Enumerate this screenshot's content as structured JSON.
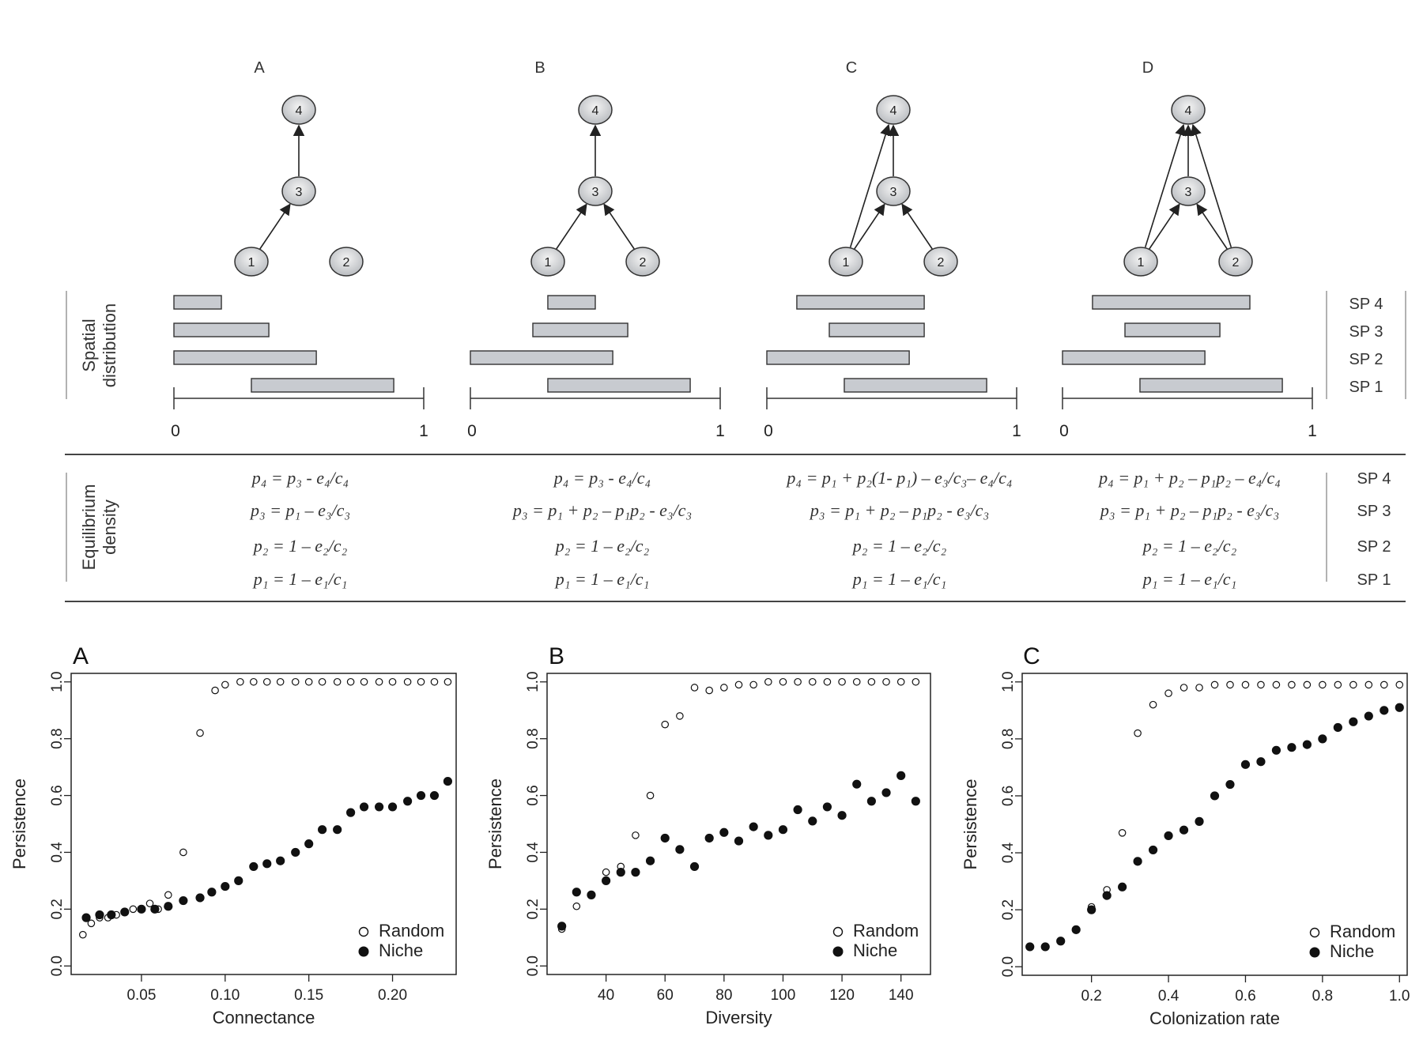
{
  "top": {
    "panel_labels": [
      "A",
      "B",
      "C",
      "D"
    ],
    "row_label_spatial": [
      "Spatial",
      "distribution"
    ],
    "row_label_equilibrium": [
      "Equilibrium",
      "density"
    ],
    "species_labels": [
      "SP 4",
      "SP 3",
      "SP 2",
      "SP 1"
    ],
    "axis_min": "0",
    "axis_max": "1",
    "nodes": [
      "1",
      "2",
      "3",
      "4"
    ],
    "webs": [
      {
        "edges": [
          [
            1,
            3
          ],
          [
            3,
            4
          ]
        ]
      },
      {
        "edges": [
          [
            1,
            3
          ],
          [
            2,
            3
          ],
          [
            3,
            4
          ]
        ]
      },
      {
        "edges": [
          [
            1,
            3
          ],
          [
            2,
            3
          ],
          [
            3,
            4
          ],
          [
            1,
            4
          ]
        ]
      },
      {
        "edges": [
          [
            1,
            3
          ],
          [
            2,
            3
          ],
          [
            3,
            4
          ],
          [
            1,
            4
          ],
          [
            2,
            4
          ]
        ]
      }
    ],
    "ranges": [
      [
        [
          0.0,
          0.19
        ],
        [
          0.0,
          0.38
        ],
        [
          0.0,
          0.57
        ],
        [
          0.31,
          0.88
        ]
      ],
      [
        [
          0.31,
          0.5
        ],
        [
          0.25,
          0.63
        ],
        [
          0.0,
          0.57
        ],
        [
          0.31,
          0.88
        ]
      ],
      [
        [
          0.12,
          0.63
        ],
        [
          0.25,
          0.63
        ],
        [
          0.0,
          0.57
        ],
        [
          0.31,
          0.88
        ]
      ],
      [
        [
          0.12,
          0.75
        ],
        [
          0.25,
          0.63
        ],
        [
          0.0,
          0.57
        ],
        [
          0.31,
          0.88
        ]
      ]
    ],
    "equations": [
      [
        "p₄ = p₃ - e₄/c₄",
        "p₃ = p₁ – e₃/c₃",
        "p₂ = 1 – e₂/c₂",
        "p₁ = 1 – e₁/c₁"
      ],
      [
        "p₄ = p₃ - e₄/c₄",
        "p₃ = p₁ + p₂ – p₁p₂ - e₃/c₃",
        "p₂ = 1 – e₂/c₂",
        "p₁ = 1 – e₁/c₁"
      ],
      [
        "p₄ = p₁ + p₂(1- p₁) – e₃/c₃– e₄/c₄",
        "p₃ = p₁ + p₂ – p₁p₂ - e₃/c₃",
        "p₂ = 1 – e₂/c₂",
        "p₁ = 1 – e₁/c₁"
      ],
      [
        "p₄ = p₁ + p₂ – p₁p₂ – e₄/c₄",
        "p₃ = p₁ + p₂ – p₁p₂ - e₃/c₃",
        "p₂ = 1 – e₂/c₂",
        "p₁ = 1 – e₁/c₁"
      ]
    ]
  },
  "chart_data": [
    {
      "type": "scatter",
      "panel": "A",
      "xlabel": "Connectance",
      "ylabel": "Persistence",
      "xlim": [
        0.008,
        0.238
      ],
      "ylim": [
        -0.03,
        1.03
      ],
      "xticks": [
        "0.05",
        "0.10",
        "0.15",
        "0.20"
      ],
      "xtick_values": [
        0.05,
        0.1,
        0.15,
        0.2
      ],
      "yticks": [
        "0.0",
        "0.2",
        "0.4",
        "0.6",
        "0.8",
        "1.0"
      ],
      "ytick_values": [
        0.0,
        0.2,
        0.4,
        0.6,
        0.8,
        1.0
      ],
      "legend": [
        "Random",
        "Niche"
      ],
      "legend_position": "bottom-right",
      "series": [
        {
          "name": "Random",
          "marker": "open",
          "x": [
            0.015,
            0.02,
            0.025,
            0.03,
            0.035,
            0.04,
            0.045,
            0.05,
            0.055,
            0.06,
            0.066,
            0.075,
            0.085,
            0.094,
            0.1,
            0.109,
            0.117,
            0.125,
            0.133,
            0.142,
            0.15,
            0.158,
            0.167,
            0.175,
            0.183,
            0.192,
            0.2,
            0.209,
            0.217,
            0.225,
            0.233
          ],
          "y": [
            0.11,
            0.15,
            0.17,
            0.17,
            0.18,
            0.19,
            0.2,
            0.2,
            0.22,
            0.2,
            0.25,
            0.4,
            0.82,
            0.97,
            0.99,
            1.0,
            1.0,
            1.0,
            1.0,
            1.0,
            1.0,
            1.0,
            1.0,
            1.0,
            1.0,
            1.0,
            1.0,
            1.0,
            1.0,
            1.0,
            1.0
          ]
        },
        {
          "name": "Niche",
          "marker": "filled",
          "x": [
            0.017,
            0.025,
            0.032,
            0.04,
            0.05,
            0.058,
            0.066,
            0.075,
            0.085,
            0.092,
            0.1,
            0.108,
            0.117,
            0.125,
            0.133,
            0.142,
            0.15,
            0.158,
            0.167,
            0.175,
            0.183,
            0.192,
            0.2,
            0.209,
            0.217,
            0.225,
            0.233
          ],
          "y": [
            0.17,
            0.18,
            0.18,
            0.19,
            0.2,
            0.2,
            0.21,
            0.23,
            0.24,
            0.26,
            0.28,
            0.3,
            0.35,
            0.36,
            0.37,
            0.4,
            0.43,
            0.48,
            0.48,
            0.54,
            0.56,
            0.56,
            0.56,
            0.58,
            0.6,
            0.6,
            0.65
          ]
        }
      ]
    },
    {
      "type": "scatter",
      "panel": "B",
      "xlabel": "Diversity",
      "ylabel": "Persistence",
      "xlim": [
        20,
        150
      ],
      "ylim": [
        -0.03,
        1.03
      ],
      "xticks": [
        "40",
        "60",
        "80",
        "100",
        "120",
        "140"
      ],
      "xtick_values": [
        40,
        60,
        80,
        100,
        120,
        140
      ],
      "yticks": [
        "0.0",
        "0.2",
        "0.4",
        "0.6",
        "0.8",
        "1.0"
      ],
      "ytick_values": [
        0.0,
        0.2,
        0.4,
        0.6,
        0.8,
        1.0
      ],
      "legend": [
        "Random",
        "Niche"
      ],
      "legend_position": "bottom-right",
      "series": [
        {
          "name": "Random",
          "marker": "open",
          "x": [
            25,
            30,
            35,
            40,
            45,
            50,
            55,
            60,
            65,
            70,
            75,
            80,
            85,
            90,
            95,
            100,
            105,
            110,
            115,
            120,
            125,
            130,
            135,
            140,
            145
          ],
          "y": [
            0.13,
            0.21,
            0.25,
            0.33,
            0.35,
            0.46,
            0.6,
            0.85,
            0.88,
            0.98,
            0.97,
            0.98,
            0.99,
            0.99,
            1.0,
            1.0,
            1.0,
            1.0,
            1.0,
            1.0,
            1.0,
            1.0,
            1.0,
            1.0,
            1.0
          ]
        },
        {
          "name": "Niche",
          "marker": "filled",
          "x": [
            25,
            30,
            35,
            40,
            45,
            50,
            55,
            60,
            65,
            70,
            75,
            80,
            85,
            90,
            95,
            100,
            105,
            110,
            115,
            120,
            125,
            130,
            135,
            140,
            145
          ],
          "y": [
            0.14,
            0.26,
            0.25,
            0.3,
            0.33,
            0.33,
            0.37,
            0.45,
            0.41,
            0.35,
            0.45,
            0.47,
            0.44,
            0.49,
            0.46,
            0.48,
            0.55,
            0.51,
            0.56,
            0.53,
            0.64,
            0.58,
            0.61,
            0.67,
            0.58
          ]
        }
      ]
    },
    {
      "type": "scatter",
      "panel": "C",
      "xlabel": "Colonization rate",
      "ylabel": "Persistence",
      "xlim": [
        0.02,
        1.02
      ],
      "ylim": [
        -0.03,
        1.03
      ],
      "xticks": [
        "0.2",
        "0.4",
        "0.6",
        "0.8",
        "1.0"
      ],
      "xtick_values": [
        0.2,
        0.4,
        0.6,
        0.8,
        1.0
      ],
      "yticks": [
        "0.0",
        "0.2",
        "0.4",
        "0.6",
        "0.8",
        "1.0"
      ],
      "ytick_values": [
        0.0,
        0.2,
        0.4,
        0.6,
        0.8,
        1.0
      ],
      "legend": [
        "Random",
        "Niche"
      ],
      "legend_position": "bottom-right",
      "series": [
        {
          "name": "Random",
          "marker": "open",
          "x": [
            0.04,
            0.08,
            0.12,
            0.16,
            0.2,
            0.24,
            0.28,
            0.32,
            0.36,
            0.4,
            0.44,
            0.48,
            0.52,
            0.56,
            0.6,
            0.64,
            0.68,
            0.72,
            0.76,
            0.8,
            0.84,
            0.88,
            0.92,
            0.96,
            1.0
          ],
          "y": [
            0.07,
            0.07,
            0.09,
            0.13,
            0.21,
            0.27,
            0.47,
            0.82,
            0.92,
            0.96,
            0.98,
            0.98,
            0.99,
            0.99,
            0.99,
            0.99,
            0.99,
            0.99,
            0.99,
            0.99,
            0.99,
            0.99,
            0.99,
            0.99,
            0.99
          ]
        },
        {
          "name": "Niche",
          "marker": "filled",
          "x": [
            0.04,
            0.08,
            0.12,
            0.16,
            0.2,
            0.24,
            0.28,
            0.32,
            0.36,
            0.4,
            0.44,
            0.48,
            0.52,
            0.56,
            0.6,
            0.64,
            0.68,
            0.72,
            0.76,
            0.8,
            0.84,
            0.88,
            0.92,
            0.96,
            1.0
          ],
          "y": [
            0.07,
            0.07,
            0.09,
            0.13,
            0.2,
            0.25,
            0.28,
            0.37,
            0.41,
            0.46,
            0.48,
            0.51,
            0.6,
            0.64,
            0.71,
            0.72,
            0.76,
            0.77,
            0.78,
            0.8,
            0.84,
            0.86,
            0.88,
            0.9,
            0.91
          ]
        }
      ]
    }
  ]
}
